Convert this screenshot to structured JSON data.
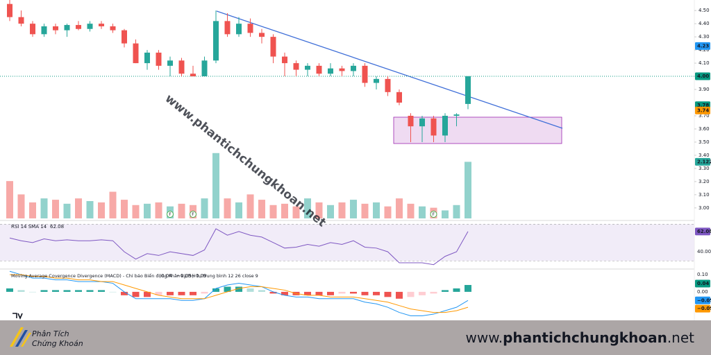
{
  "chart_data": {
    "type": "candlestick",
    "open": [
      4.55,
      4.45,
      4.4,
      4.32,
      4.38,
      4.35,
      4.39,
      4.36,
      4.4,
      4.38,
      4.35,
      4.25,
      4.1,
      4.18,
      4.08,
      4.12,
      4.02,
      4.0,
      4.12,
      4.42,
      4.32,
      4.4,
      4.33,
      4.3,
      4.15,
      4.1,
      4.05,
      4.08,
      4.02,
      4.06,
      4.04,
      4.08,
      3.95,
      3.98,
      3.88,
      3.7,
      3.62,
      3.68,
      3.55,
      3.7,
      3.79
    ],
    "high": [
      4.58,
      4.5,
      4.42,
      4.4,
      4.4,
      4.4,
      4.42,
      4.42,
      4.42,
      4.4,
      4.36,
      4.28,
      4.2,
      4.2,
      4.15,
      4.14,
      4.08,
      4.15,
      4.5,
      4.48,
      4.45,
      4.44,
      4.36,
      4.32,
      4.18,
      4.12,
      4.1,
      4.1,
      4.1,
      4.08,
      4.1,
      4.1,
      4.0,
      4.0,
      3.9,
      3.72,
      3.7,
      3.7,
      3.72,
      3.72,
      4.0
    ],
    "low": [
      4.42,
      4.38,
      4.3,
      4.3,
      4.32,
      4.3,
      4.35,
      4.34,
      4.36,
      4.33,
      4.22,
      4.1,
      4.05,
      4.05,
      4.0,
      4.0,
      4.0,
      4.0,
      4.1,
      4.3,
      4.3,
      4.3,
      4.25,
      4.1,
      4.0,
      4.0,
      4.0,
      4.0,
      4.0,
      4.0,
      4.0,
      3.92,
      3.9,
      3.85,
      3.78,
      3.5,
      3.5,
      3.5,
      3.5,
      3.62,
      3.75
    ],
    "close": [
      4.45,
      4.4,
      4.32,
      4.38,
      4.35,
      4.39,
      4.36,
      4.4,
      4.38,
      4.35,
      4.25,
      4.1,
      4.18,
      4.08,
      4.12,
      4.02,
      4.0,
      4.12,
      4.42,
      4.32,
      4.4,
      4.33,
      4.3,
      4.15,
      4.1,
      4.05,
      4.08,
      4.02,
      4.06,
      4.04,
      4.08,
      3.95,
      3.98,
      3.88,
      3.8,
      3.62,
      3.68,
      3.55,
      3.7,
      3.71,
      4.0
    ],
    "color_up": "#26a69a",
    "color_down": "#ef5350",
    "ylim": [
      2.92,
      4.58
    ],
    "yticks": [
      {
        "value": 4.5,
        "label": "4.50"
      },
      {
        "value": 4.4,
        "label": "4.40"
      },
      {
        "value": 4.3,
        "label": "4.30"
      },
      {
        "value": 4.2,
        "label": "4.20"
      },
      {
        "value": 4.1,
        "label": "4.10"
      },
      {
        "value": 3.9,
        "label": "3.90"
      },
      {
        "value": 3.7,
        "label": "3.70"
      },
      {
        "value": 3.6,
        "label": "3.60"
      },
      {
        "value": 3.5,
        "label": "3.50"
      },
      {
        "value": 3.4,
        "label": "3.40"
      },
      {
        "value": 3.3,
        "label": "3.30"
      },
      {
        "value": 3.2,
        "label": "3.20"
      },
      {
        "value": 3.1,
        "label": "3.10"
      },
      {
        "value": 3.0,
        "label": "3.00"
      }
    ],
    "price_labels": [
      {
        "value": 4.23,
        "label": "4.23",
        "color": "#2196f3"
      },
      {
        "value": 4.0,
        "label": "4.00",
        "color": "#089981"
      },
      {
        "value": 3.78,
        "label": "3.78",
        "color": "#089981"
      },
      {
        "value": 3.74,
        "label": "3.74",
        "color": "#ff9800"
      }
    ],
    "volume": {
      "values": [
        1.4,
        0.9,
        0.6,
        0.75,
        0.7,
        0.55,
        0.75,
        0.65,
        0.6,
        1.0,
        0.7,
        0.5,
        0.55,
        0.6,
        0.45,
        0.55,
        0.5,
        0.75,
        2.45,
        0.75,
        0.6,
        0.9,
        0.7,
        0.5,
        0.55,
        0.45,
        0.75,
        0.6,
        0.5,
        0.6,
        0.7,
        0.55,
        0.6,
        0.45,
        0.75,
        0.55,
        0.45,
        0.4,
        0.3,
        0.5,
        2.122
      ],
      "ylim": [
        0,
        2.6
      ]
    },
    "events": [
      {
        "index": 14,
        "label": "F"
      },
      {
        "index": 16,
        "label": "F"
      },
      {
        "index": 37,
        "label": "F"
      }
    ],
    "rsi": {
      "title": "RSI 14 SMA 14",
      "ylim": [
        23.5,
        71
      ],
      "band": [
        30,
        70
      ],
      "values": [
        55,
        52,
        50,
        54,
        52,
        53,
        52,
        52,
        53,
        52,
        40,
        32,
        38,
        36,
        40,
        38,
        36,
        42,
        65,
        58,
        62,
        58,
        56,
        50,
        44,
        45,
        48,
        46,
        50,
        48,
        52,
        45,
        44,
        40,
        28,
        28,
        28,
        26,
        35,
        40,
        62.08
      ],
      "yticks": [
        {
          "value": 40,
          "label": "40.00"
        }
      ]
    },
    "macd": {
      "title": "Moving Average Covergence Divergence (MACD) - Chỉ báo Biến động Phân kỳ/Hội tụ trung bình 12 26 close 9",
      "ylim": [
        -0.15,
        0.125
      ],
      "yticks": [
        {
          "value": 0.1,
          "label": "0.10"
        },
        {
          "value": 0,
          "label": "0.00"
        }
      ],
      "histogram": [
        0.02,
        0.01,
        0.0,
        0.01,
        0.01,
        0.01,
        0.01,
        0.01,
        0.01,
        0.0,
        -0.02,
        -0.03,
        -0.03,
        -0.02,
        -0.02,
        -0.02,
        -0.02,
        -0.01,
        0.02,
        0.03,
        0.03,
        0.02,
        0.01,
        -0.01,
        -0.02,
        -0.02,
        -0.02,
        -0.02,
        -0.02,
        -0.01,
        -0.01,
        -0.02,
        -0.02,
        -0.03,
        -0.04,
        -0.03,
        -0.02,
        -0.01,
        0.01,
        0.02,
        0.04
      ],
      "macd": [
        0.12,
        0.1,
        0.08,
        0.08,
        0.07,
        0.07,
        0.06,
        0.06,
        0.06,
        0.05,
        0.0,
        -0.04,
        -0.04,
        -0.04,
        -0.04,
        -0.05,
        -0.05,
        -0.04,
        0.02,
        0.04,
        0.05,
        0.04,
        0.03,
        0.0,
        -0.02,
        -0.03,
        -0.03,
        -0.04,
        -0.04,
        -0.04,
        -0.04,
        -0.06,
        -0.07,
        -0.09,
        -0.12,
        -0.14,
        -0.14,
        -0.13,
        -0.11,
        -0.09,
        -0.05
      ],
      "signal": [
        0.1,
        0.1,
        0.09,
        0.09,
        0.08,
        0.08,
        0.07,
        0.07,
        0.06,
        0.06,
        0.04,
        0.02,
        0.0,
        -0.02,
        -0.03,
        -0.04,
        -0.04,
        -0.04,
        -0.02,
        0.0,
        0.02,
        0.03,
        0.03,
        0.02,
        0.01,
        -0.01,
        -0.02,
        -0.02,
        -0.03,
        -0.03,
        -0.03,
        -0.04,
        -0.05,
        -0.06,
        -0.08,
        -0.1,
        -0.11,
        -0.12,
        -0.12,
        -0.11,
        -0.09
      ],
      "legend": [
        {
          "value": 0.04,
          "label": "0.04",
          "color": "#089981"
        },
        {
          "value": -0.05,
          "label": "−0.05",
          "color": "#2196f3"
        },
        {
          "value": -0.09,
          "label": "−0.09",
          "color": "#ff9800"
        }
      ]
    },
    "watermark": "www.phantichchungkhoan.net",
    "footer": {
      "brand": [
        "Phân Tích",
        "Chứng Khoán"
      ],
      "url": [
        "www.",
        "phantichchungkhoan",
        ".net"
      ]
    }
  }
}
